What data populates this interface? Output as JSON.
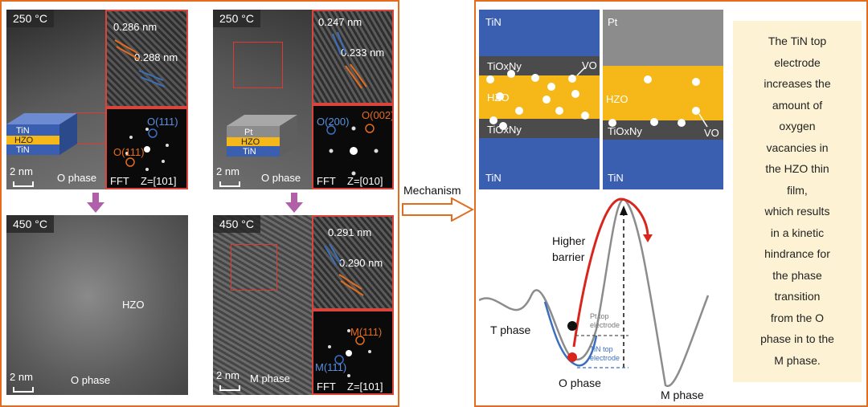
{
  "colors": {
    "accent": "#e46c1e",
    "tin": "#3a5fb0",
    "pt": "#8c8c8c",
    "hzo": "#f5b818",
    "tioxny": "#4b4b4b",
    "red_curve": "#d9261c",
    "blue_curve": "#3a6fc0",
    "note_bg": "#fdf3d4",
    "arrow": "#b05fa8"
  },
  "left_panel": {
    "tin_top": {
      "label": "250 °C",
      "d1": "0.286 nm",
      "d2": "0.288 nm",
      "stack": [
        "TiN",
        "HZO",
        "TiN"
      ],
      "phase": "O phase",
      "scale": "2 nm",
      "fft": "FFT",
      "zone": "Z=[101]",
      "spot1": "O(111)",
      "spot2": "O(111)"
    },
    "pt_top": {
      "label": "250 °C",
      "d1": "0.247 nm",
      "d2": "0.233 nm",
      "stack": [
        "Pt",
        "HZO",
        "TiN"
      ],
      "phase": "O phase",
      "scale": "2 nm",
      "fft": "FFT",
      "zone": "Z=[010]",
      "spot1": "O(200)",
      "spot2": "O(002)"
    },
    "tin_bottom": {
      "label": "450 °C",
      "material": "HZO",
      "phase": "O phase",
      "scale": "2 nm"
    },
    "pt_bottom": {
      "label": "450 °C",
      "d1": "0.291 nm",
      "d2": "0.290 nm",
      "phase": "M phase",
      "scale": "2 nm",
      "fft": "FFT",
      "zone": "Z=[101]",
      "spot1": "M(111)",
      "spot2": "M(111)"
    }
  },
  "mechanism_label": "Mechanism",
  "schematic": {
    "left_top": "TiN",
    "right_top": "Pt",
    "tioxny": "TiOxNy",
    "hzo": "HZO",
    "vo": "VO",
    "left_bottom": "TiN",
    "right_bottom": "TiN"
  },
  "energy": {
    "higher_barrier": "Higher barrier",
    "t_phase": "T phase",
    "o_phase": "O phase",
    "m_phase": "M phase",
    "pt_label": "Pt top electrode",
    "tin_label": "TiN top electrode"
  },
  "note": {
    "lines": [
      "The TiN top",
      "electrode",
      "increases the",
      "amount of",
      "oxygen",
      "vacancies in",
      "the HZO thin",
      "film,",
      "which results",
      "in a kinetic",
      "hindrance for",
      "the phase",
      "transition",
      "from the O",
      "phase in to the",
      "M phase."
    ]
  }
}
